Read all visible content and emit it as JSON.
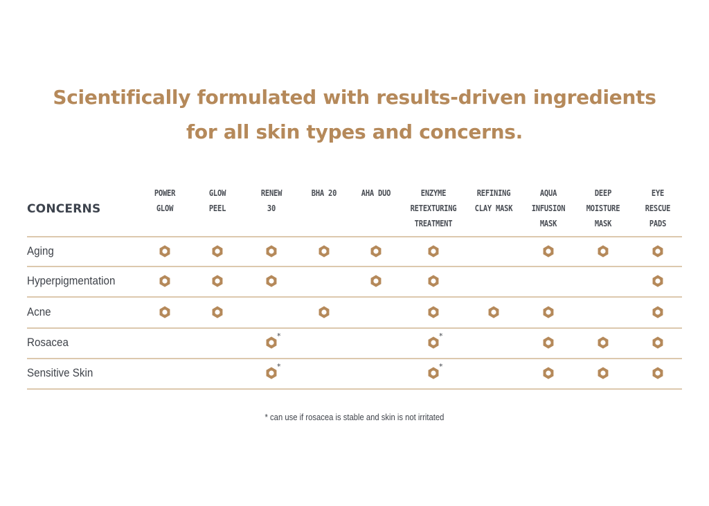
{
  "headline": {
    "line1": "Scientifically formulated with results-driven ingredients",
    "line2": "for all skin types and concerns."
  },
  "table": {
    "corner_label": "CONCERNS",
    "columns": [
      {
        "key": "power-glow",
        "label": [
          "POWER",
          "GLOW"
        ]
      },
      {
        "key": "glow-peel",
        "label": [
          "GLOW",
          "PEEL"
        ]
      },
      {
        "key": "renew-30",
        "label": [
          "RENEW",
          "30"
        ]
      },
      {
        "key": "bha-20",
        "label": [
          "BHA 20"
        ]
      },
      {
        "key": "aha-duo",
        "label": [
          "AHA DUO"
        ]
      },
      {
        "key": "enzyme-retexturing-treatment",
        "label": [
          "ENZYME",
          "RETEXTURING",
          "TREATMENT"
        ]
      },
      {
        "key": "refining-clay-mask",
        "label": [
          "REFINING",
          "CLAY MASK"
        ]
      },
      {
        "key": "aqua-infusion-mask",
        "label": [
          "AQUA",
          "INFUSION",
          "MASK"
        ]
      },
      {
        "key": "deep-moisture-mask",
        "label": [
          "DEEP",
          "MOISTURE",
          "MASK"
        ]
      },
      {
        "key": "eye-rescue-pads",
        "label": [
          "EYE",
          "RESCUE",
          "PADS"
        ]
      }
    ],
    "rows": [
      {
        "label": "Aging",
        "cells": [
          "yes",
          "yes",
          "yes",
          "yes",
          "yes",
          "yes",
          "",
          "yes",
          "yes",
          "yes"
        ]
      },
      {
        "label": "Hyperpigmentation",
        "cells": [
          "yes",
          "yes",
          "yes",
          "",
          "yes",
          "yes",
          "",
          "",
          "",
          "yes"
        ]
      },
      {
        "label": "Acne",
        "cells": [
          "yes",
          "yes",
          "",
          "yes",
          "",
          "yes",
          "yes",
          "yes",
          "",
          "yes"
        ]
      },
      {
        "label": "Rosacea",
        "cells": [
          "",
          "",
          "star",
          "",
          "",
          "star",
          "",
          "yes",
          "yes",
          "yes"
        ]
      },
      {
        "label": "Sensitive Skin",
        "cells": [
          "",
          "",
          "star",
          "",
          "",
          "star",
          "",
          "yes",
          "yes",
          "yes"
        ]
      }
    ],
    "star_symbol": "*",
    "mark_color": "#b5895a"
  },
  "footnote": "* can use if rosacea is stable and skin is not irritated"
}
